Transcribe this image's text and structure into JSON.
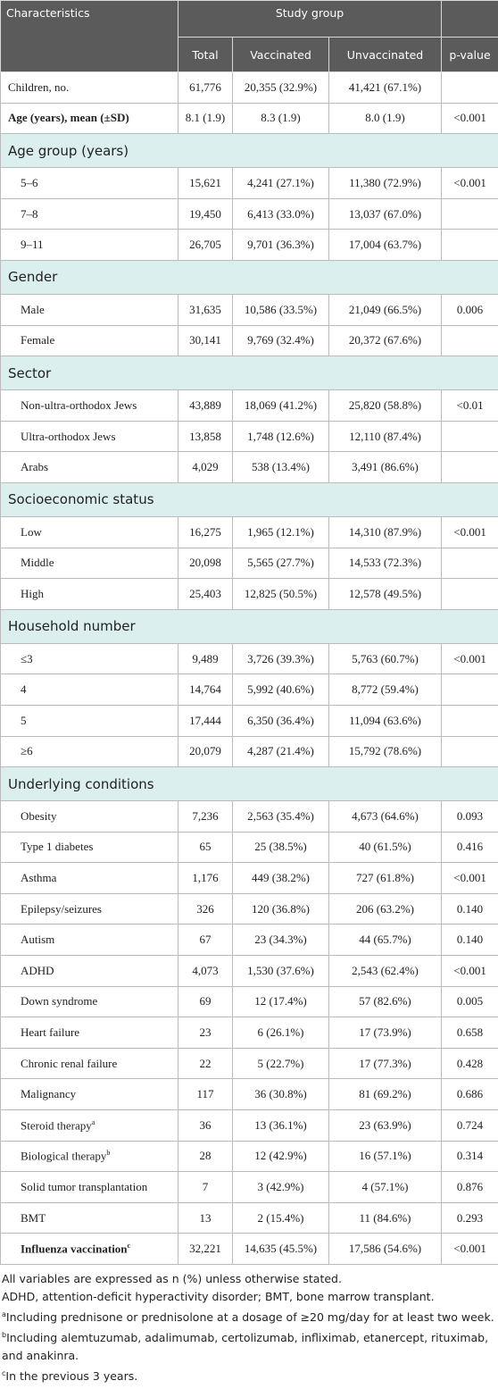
{
  "table": {
    "header": {
      "characteristics": "Characteristics",
      "study_group": "Study group",
      "columns": [
        "Total",
        "Vaccinated",
        "Unvaccinated",
        "p-value"
      ]
    },
    "rows": [
      {
        "label": "Children, no.",
        "cells": [
          "61,776",
          "20,355 (32.9%)",
          "41,421 (67.1%)",
          null
        ]
      },
      {
        "label": "Age (years), mean (±SD)",
        "bold": true,
        "cells": [
          "8.1 (1.9)",
          "8.3 (1.9)",
          "8.0 (1.9)",
          "<0.001"
        ]
      },
      {
        "section": "Age group (years)"
      },
      {
        "label": "5–6",
        "cells": [
          "15,621",
          "4,241 (27.1%)",
          "11,380 (72.9%)",
          "<0.001"
        ]
      },
      {
        "label": "7–8",
        "cells": [
          "19,450",
          "6,413 (33.0%)",
          "13,037 (67.0%)",
          null
        ]
      },
      {
        "label": "9–11",
        "cells": [
          "26,705",
          "9,701 (36.3%)",
          "17,004 (63.7%)",
          null
        ]
      },
      {
        "section": "Gender"
      },
      {
        "label": "Male",
        "cells": [
          "31,635",
          "10,586 (33.5%)",
          "21,049 (66.5%)",
          "0.006"
        ]
      },
      {
        "label": "Female",
        "cells": [
          "30,141",
          "9,769 (32.4%)",
          "20,372 (67.6%)",
          null
        ]
      },
      {
        "section": "Sector"
      },
      {
        "label": "Non-ultra-orthodox Jews",
        "cells": [
          "43,889",
          "18,069 (41.2%)",
          "25,820 (58.8%)",
          "<0.01"
        ]
      },
      {
        "label": "Ultra-orthodox Jews",
        "cells": [
          "13,858",
          "1,748 (12.6%)",
          "12,110 (87.4%)",
          null
        ]
      },
      {
        "label": "Arabs",
        "cells": [
          "4,029",
          "538 (13.4%)",
          "3,491 (86.6%)",
          null
        ]
      },
      {
        "section": "Socioeconomic status"
      },
      {
        "label": "Low",
        "cells": [
          "16,275",
          "1,965 (12.1%)",
          "14,310 (87.9%)",
          "<0.001"
        ]
      },
      {
        "label": "Middle",
        "cells": [
          "20,098",
          "5,565 (27.7%)",
          "14,533 (72.3%)",
          null
        ]
      },
      {
        "label": "High",
        "cells": [
          "25,403",
          "12,825 (50.5%)",
          "12,578 (49.5%)",
          null
        ]
      },
      {
        "section": "Household number"
      },
      {
        "label": "≤3",
        "cells": [
          "9,489",
          "3,726 (39.3%)",
          "5,763 (60.7%)",
          "<0.001"
        ]
      },
      {
        "label": "4",
        "cells": [
          "14,764",
          "5,992 (40.6%)",
          "8,772 (59.4%)",
          null
        ]
      },
      {
        "label": "5",
        "cells": [
          "17,444",
          "6,350 (36.4%)",
          "11,094 (63.6%)",
          null
        ]
      },
      {
        "label": "≥6",
        "cells": [
          "20,079",
          "4,287 (21.4%)",
          "15,792 (78.6%)",
          null
        ]
      },
      {
        "section": "Underlying conditions"
      },
      {
        "label": "Obesity",
        "cells": [
          "7,236",
          "2,563 (35.4%)",
          "4,673 (64.6%)",
          "0.093"
        ]
      },
      {
        "label": "Type 1 diabetes",
        "cells": [
          "65",
          "25 (38.5%)",
          "40 (61.5%)",
          "0.416"
        ]
      },
      {
        "label": "Asthma",
        "cells": [
          "1,176",
          "449 (38.2%)",
          "727 (61.8%)",
          "<0.001"
        ]
      },
      {
        "label": "Epilepsy/seizures",
        "cells": [
          "326",
          "120 (36.8%)",
          "206 (63.2%)",
          "0.140"
        ]
      },
      {
        "label": "Autism",
        "cells": [
          "67",
          "23 (34.3%)",
          "44 (65.7%)",
          "0.140"
        ]
      },
      {
        "label": "ADHD",
        "cells": [
          "4,073",
          "1,530 (37.6%)",
          "2,543 (62.4%)",
          "<0.001"
        ]
      },
      {
        "label": "Down syndrome",
        "cells": [
          "69",
          "12 (17.4%)",
          "57 (82.6%)",
          "0.005"
        ]
      },
      {
        "label": "Heart failure",
        "cells": [
          "23",
          "6 (26.1%)",
          "17 (73.9%)",
          "0.658"
        ]
      },
      {
        "label": "Chronic renal failure",
        "cells": [
          "22",
          "5 (22.7%)",
          "17 (77.3%)",
          "0.428"
        ]
      },
      {
        "label": "Malignancy",
        "cells": [
          "117",
          "36 (30.8%)",
          "81 (69.2%)",
          "0.686"
        ]
      },
      {
        "label": "Steroid therapy",
        "note": "a",
        "cells": [
          "36",
          "13 (36.1%)",
          "23 (63.9%)",
          "0.724"
        ]
      },
      {
        "label": "Biological therapy",
        "note": "b",
        "cells": [
          "28",
          "12 (42.9%)",
          "16 (57.1%)",
          "0.314"
        ]
      },
      {
        "label": "Solid tumor transplantation",
        "cells": [
          "7",
          "3 (42.9%)",
          "4 (57.1%)",
          "0.876"
        ]
      },
      {
        "label": "BMT",
        "cells": [
          "13",
          "2 (15.4%)",
          "11 (84.6%)",
          "0.293"
        ]
      },
      {
        "label": "Influenza vaccination",
        "note": "c",
        "bold": true,
        "cells": [
          "32,221",
          "14,635 (45.5%)",
          "17,586 (54.6%)",
          "<0.001"
        ]
      }
    ]
  },
  "footnotes": [
    {
      "text": "All variables are expressed as n (%) unless otherwise stated."
    },
    {
      "text": "ADHD, attention-deficit hyperactivity disorder; BMT, bone marrow transplant."
    },
    {
      "mark": "a",
      "text": "Including prednisone or prednisolone at a dosage of ≥20 mg/day for at least two week."
    },
    {
      "mark": "b",
      "text": "Including alemtuzumab, adalimumab, certolizumab, infliximab, etanercept, rituximab, and anakinra."
    },
    {
      "mark": "c",
      "text": "In the previous 3 years."
    }
  ]
}
